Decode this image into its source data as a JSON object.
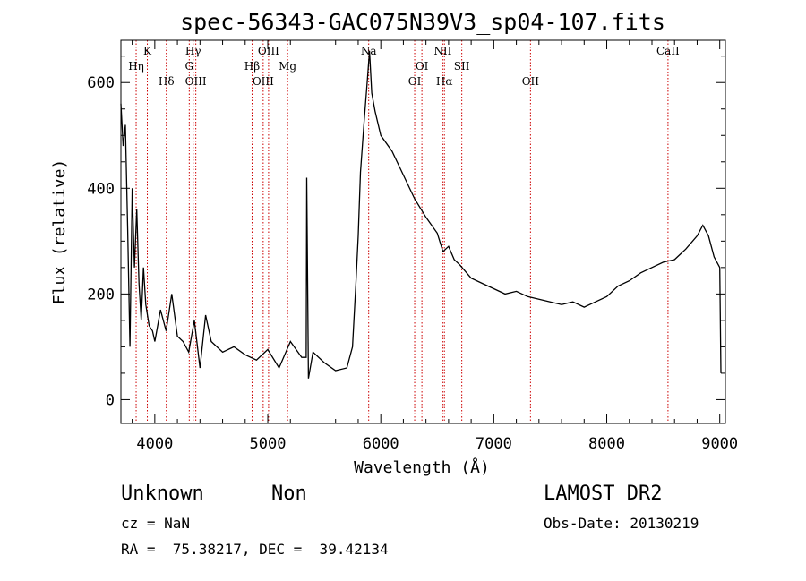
{
  "chart_data": {
    "type": "line",
    "title": "spec-56343-GAC075N39V3_sp04-107.fits",
    "xlabel": "Wavelength (Å)",
    "ylabel": "Flux (relative)",
    "xlim": [
      3700,
      9050
    ],
    "ylim": [
      -45,
      680
    ],
    "x_ticks": [
      4000,
      5000,
      6000,
      7000,
      8000,
      9000
    ],
    "y_ticks": [
      0,
      200,
      400,
      600
    ],
    "grid": false,
    "line_color": "#000000",
    "marker_color": "#cc0000",
    "spectral_lines": [
      {
        "name": "Hη",
        "wavelength": 3835,
        "row": 2
      },
      {
        "name": "K",
        "wavelength": 3934,
        "row": 1
      },
      {
        "name": "Hδ",
        "wavelength": 4102,
        "row": 3
      },
      {
        "name": "Hγ",
        "wavelength": 4340,
        "row": 1
      },
      {
        "name": "G",
        "wavelength": 4305,
        "row": 2
      },
      {
        "name": "OIII",
        "wavelength": 4363,
        "row": 3
      },
      {
        "name": "Hβ",
        "wavelength": 4861,
        "row": 2
      },
      {
        "name": "OIII",
        "wavelength": 4959,
        "row": 3
      },
      {
        "name": "OIII",
        "wavelength": 5007,
        "row": 1
      },
      {
        "name": "Mg",
        "wavelength": 5175,
        "row": 2
      },
      {
        "name": "Na",
        "wavelength": 5893,
        "row": 1
      },
      {
        "name": "OI",
        "wavelength": 6300,
        "row": 3
      },
      {
        "name": "OI",
        "wavelength": 6364,
        "row": 2
      },
      {
        "name": "NII",
        "wavelength": 6548,
        "row": 1
      },
      {
        "name": "Hα",
        "wavelength": 6563,
        "row": 3
      },
      {
        "name": "SII",
        "wavelength": 6717,
        "row": 2
      },
      {
        "name": "OII",
        "wavelength": 7325,
        "row": 3
      },
      {
        "name": "CaII",
        "wavelength": 8542,
        "row": 1
      }
    ],
    "series": [
      {
        "x": [
          3700,
          3720,
          3740,
          3760,
          3780,
          3800,
          3820,
          3840,
          3860,
          3880,
          3900,
          3920,
          3950,
          3980,
          4000,
          4050,
          4100,
          4150,
          4200,
          4250,
          4300,
          4350,
          4400,
          4450,
          4500,
          4600,
          4700,
          4800,
          4900,
          5000,
          5100,
          5200,
          5300,
          5340,
          5345,
          5360,
          5400,
          5500,
          5600,
          5700,
          5750,
          5780,
          5800,
          5820,
          5850,
          5880,
          5900,
          5920,
          5950,
          6000,
          6100,
          6200,
          6300,
          6400,
          6500,
          6550,
          6600,
          6650,
          6700,
          6800,
          6900,
          7000,
          7100,
          7200,
          7300,
          7400,
          7500,
          7600,
          7700,
          7800,
          7900,
          8000,
          8100,
          8200,
          8300,
          8400,
          8500,
          8600,
          8700,
          8800,
          8850,
          8900,
          8950,
          9000,
          9010
        ],
        "values": [
          560,
          480,
          520,
          320,
          100,
          400,
          250,
          360,
          220,
          150,
          250,
          180,
          140,
          130,
          110,
          170,
          130,
          200,
          120,
          110,
          90,
          150,
          60,
          160,
          110,
          90,
          100,
          85,
          75,
          95,
          60,
          110,
          80,
          80,
          420,
          40,
          90,
          70,
          55,
          60,
          100,
          220,
          310,
          430,
          520,
          600,
          660,
          580,
          545,
          500,
          470,
          425,
          380,
          345,
          315,
          280,
          290,
          265,
          255,
          230,
          220,
          210,
          200,
          205,
          195,
          190,
          185,
          180,
          185,
          175,
          185,
          195,
          215,
          225,
          240,
          250,
          260,
          265,
          285,
          310,
          330,
          310,
          270,
          250,
          50
        ]
      }
    ]
  },
  "info": {
    "class_label": "Unknown",
    "subclass_label": "Non",
    "survey": "LAMOST DR2",
    "redshift": "cz = NaN",
    "obs_date": "Obs-Date: 20130219",
    "coords": "RA =  75.38217, DEC =  39.42134"
  }
}
